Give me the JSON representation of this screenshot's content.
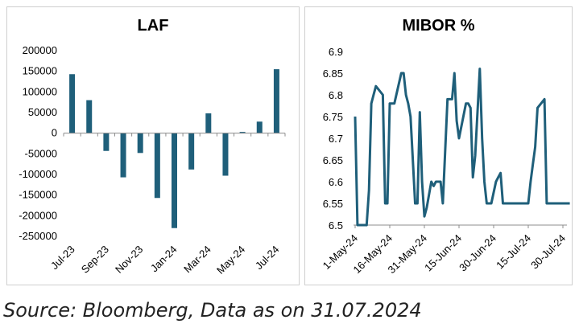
{
  "chart_data": [
    {
      "type": "bar",
      "title": "LAF",
      "categories": [
        "Jul-23",
        "Aug-23",
        "Sep-23",
        "Oct-23",
        "Nov-23",
        "Dec-23",
        "Jan-24",
        "Feb-24",
        "Mar-24",
        "Apr-24",
        "May-24",
        "Jun-24",
        "Jul-24"
      ],
      "tick_labels": [
        "Jul-23",
        "Sep-23",
        "Nov-23",
        "Jan-24",
        "Mar-24",
        "May-24",
        "Jul-24"
      ],
      "values": [
        143000,
        80000,
        -43000,
        -107000,
        -48000,
        -157000,
        -230000,
        -88000,
        48000,
        -103000,
        3000,
        28000,
        155000
      ],
      "yticks": [
        200000,
        150000,
        100000,
        50000,
        0,
        -50000,
        -100000,
        -150000,
        -200000,
        -250000
      ],
      "ytick_labels": [
        "200000",
        "150000",
        "100000",
        "50000",
        "0",
        "-50000",
        "-100000",
        "-150000",
        "-200000",
        "-250000"
      ],
      "ylim": [
        -250000,
        200000
      ],
      "color": "#1f5f7a"
    },
    {
      "type": "line",
      "title": "MIBOR %",
      "tick_labels": [
        "1-May-24",
        "16-May-24",
        "31-May-24",
        "15-Jun-24",
        "30-Jun-24",
        "15-Jul-24",
        "30-Jul-24"
      ],
      "x_dates": [
        "2024-05-01",
        "2024-05-02",
        "2024-05-03",
        "2024-05-06",
        "2024-05-07",
        "2024-05-08",
        "2024-05-09",
        "2024-05-10",
        "2024-05-13",
        "2024-05-14",
        "2024-05-15",
        "2024-05-16",
        "2024-05-17",
        "2024-05-18",
        "2024-05-21",
        "2024-05-22",
        "2024-05-23",
        "2024-05-24",
        "2024-05-25",
        "2024-05-27",
        "2024-05-28",
        "2024-05-29",
        "2024-05-30",
        "2024-05-31",
        "2024-06-01",
        "2024-06-03",
        "2024-06-04",
        "2024-06-05",
        "2024-06-06",
        "2024-06-07",
        "2024-06-08",
        "2024-06-10",
        "2024-06-11",
        "2024-06-12",
        "2024-06-13",
        "2024-06-14",
        "2024-06-15",
        "2024-06-18",
        "2024-06-19",
        "2024-06-20",
        "2024-06-21",
        "2024-06-22",
        "2024-06-24",
        "2024-06-25",
        "2024-06-26",
        "2024-06-27",
        "2024-06-28",
        "2024-06-29",
        "2024-07-01",
        "2024-07-02",
        "2024-07-03",
        "2024-07-04",
        "2024-07-05",
        "2024-07-08",
        "2024-07-09",
        "2024-07-10",
        "2024-07-11",
        "2024-07-12",
        "2024-07-15",
        "2024-07-16",
        "2024-07-17",
        "2024-07-18",
        "2024-07-19",
        "2024-07-22",
        "2024-07-23",
        "2024-07-24",
        "2024-07-25",
        "2024-07-26",
        "2024-07-29",
        "2024-07-30",
        "2024-07-31",
        "2024-08-02"
      ],
      "y": [
        6.75,
        6.5,
        6.5,
        6.5,
        6.58,
        6.78,
        6.8,
        6.82,
        6.8,
        6.55,
        6.55,
        6.78,
        6.78,
        6.78,
        6.85,
        6.85,
        6.8,
        6.78,
        6.75,
        6.55,
        6.55,
        6.76,
        6.6,
        6.52,
        6.54,
        6.6,
        6.59,
        6.6,
        6.6,
        6.6,
        6.55,
        6.79,
        6.79,
        6.79,
        6.85,
        6.74,
        6.7,
        6.78,
        6.78,
        6.77,
        6.61,
        6.66,
        6.86,
        6.7,
        6.6,
        6.55,
        6.55,
        6.55,
        6.6,
        6.61,
        6.62,
        6.55,
        6.55,
        6.55,
        6.55,
        6.55,
        6.55,
        6.55,
        6.55,
        6.6,
        6.64,
        6.68,
        6.77,
        6.79,
        6.55,
        6.55,
        6.55,
        6.55,
        6.55,
        6.55,
        6.55,
        6.55
      ],
      "yticks": [
        6.9,
        6.85,
        6.8,
        6.75,
        6.7,
        6.65,
        6.6,
        6.55,
        6.5
      ],
      "ytick_labels": [
        "6.9",
        "6.85",
        "6.8",
        "6.75",
        "6.7",
        "6.65",
        "6.6",
        "6.55",
        "6.5"
      ],
      "ylim": [
        6.5,
        6.9
      ],
      "color": "#1f5f7a"
    }
  ],
  "source": "Source: Bloomberg, Data as on 31.07.2024"
}
